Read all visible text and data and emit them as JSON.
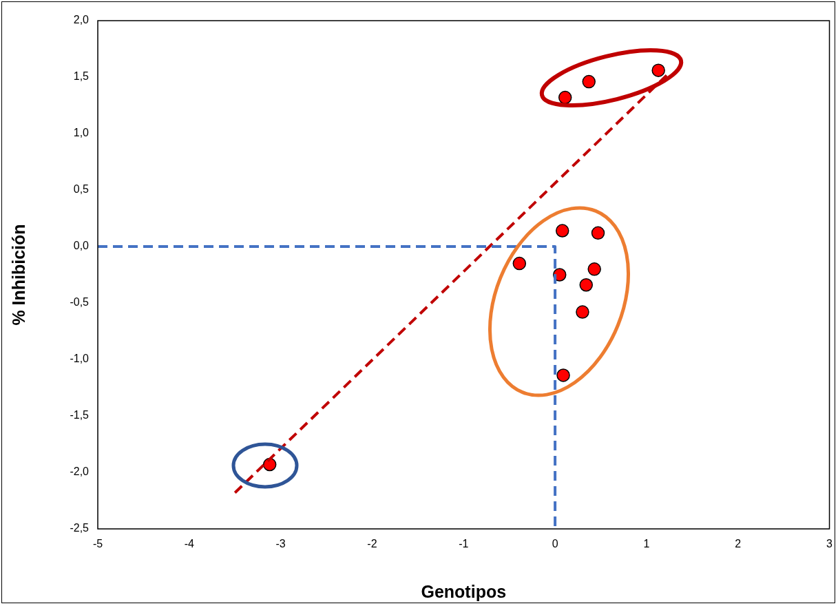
{
  "chart_data": {
    "type": "scatter",
    "xlabel": "Genotipos",
    "ylabel": "% Inhibición",
    "xlim": [
      -5,
      3
    ],
    "xticks": [
      -5,
      -4,
      -3,
      -2,
      -1,
      0,
      1,
      2,
      3
    ],
    "ylim": [
      -2.5,
      2.0
    ],
    "yticks": [
      {
        "value": 2.0,
        "label": "2,0"
      },
      {
        "value": 1.5,
        "label": "1,5"
      },
      {
        "value": 1.0,
        "label": "1,0"
      },
      {
        "value": 0.5,
        "label": "0,5"
      },
      {
        "value": 0.0,
        "label": "0,0"
      },
      {
        "value": -0.5,
        "label": "-0,5"
      },
      {
        "value": -1.0,
        "label": "-1,0"
      },
      {
        "value": -1.5,
        "label": "-1,5"
      },
      {
        "value": -2.0,
        "label": "-2,0"
      },
      {
        "value": -2.5,
        "label": "-2,5"
      }
    ],
    "grid": false,
    "legend": false,
    "series": [
      {
        "type": "line",
        "color": "#4472c4",
        "line_style": "dashed",
        "marker": "none",
        "x": [
          -5,
          0,
          0
        ],
        "values": [
          0,
          0,
          -2.5
        ]
      },
      {
        "type": "line",
        "color": "#c00000",
        "line_style": "dashed",
        "marker": "none",
        "x": [
          -3.5,
          1.25
        ],
        "values": [
          -2.18,
          1.54
        ]
      },
      {
        "type": "scatter",
        "color": "#ff0000",
        "marker": "circle",
        "x": [
          0.11,
          0.37,
          1.13,
          0.08,
          0.47,
          -0.39,
          0.05,
          0.43,
          0.34,
          0.3,
          0.09,
          -3.12
        ],
        "values": [
          1.32,
          1.46,
          1.56,
          0.14,
          0.12,
          -0.15,
          -0.25,
          -0.2,
          -0.34,
          -0.58,
          -1.14,
          -1.93
        ]
      }
    ]
  }
}
